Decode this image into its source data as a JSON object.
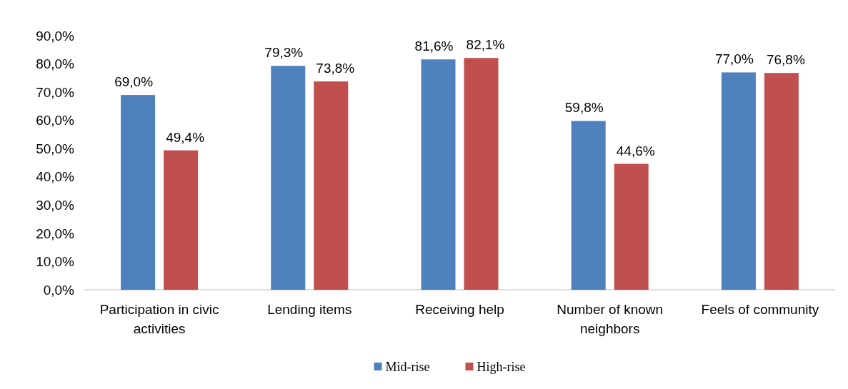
{
  "chart_data": {
    "type": "bar",
    "categories": [
      "Participation in civic activities",
      "Lending items",
      "Receiving help",
      "Number of known neighbors",
      "Feels of community"
    ],
    "series": [
      {
        "name": "Mid-rise",
        "color": "#4f81bd",
        "values": [
          69.0,
          79.3,
          81.6,
          59.8,
          77.0
        ],
        "value_labels": [
          "69,0%",
          "79,3%",
          "81,6%",
          "59,8%",
          "77,0%"
        ]
      },
      {
        "name": "High-rise",
        "color": "#c0504d",
        "values": [
          49.4,
          73.8,
          82.1,
          44.6,
          76.8
        ],
        "value_labels": [
          "49,4%",
          "73,8%",
          "82,1%",
          "44,6%",
          "76,8%"
        ]
      }
    ],
    "ylim": [
      0,
      90
    ],
    "yticks": [
      {
        "value": 0,
        "label": "0,0%"
      },
      {
        "value": 10,
        "label": "10,0%"
      },
      {
        "value": 20,
        "label": "20,0%"
      },
      {
        "value": 30,
        "label": "30,0%"
      },
      {
        "value": 40,
        "label": "40,0%"
      },
      {
        "value": 50,
        "label": "50,0%"
      },
      {
        "value": 60,
        "label": "60,0%"
      },
      {
        "value": 70,
        "label": "70,0%"
      },
      {
        "value": 80,
        "label": "80,0%"
      },
      {
        "value": 90,
        "label": "90,0%"
      }
    ],
    "grid": false,
    "legend": "bottom"
  }
}
